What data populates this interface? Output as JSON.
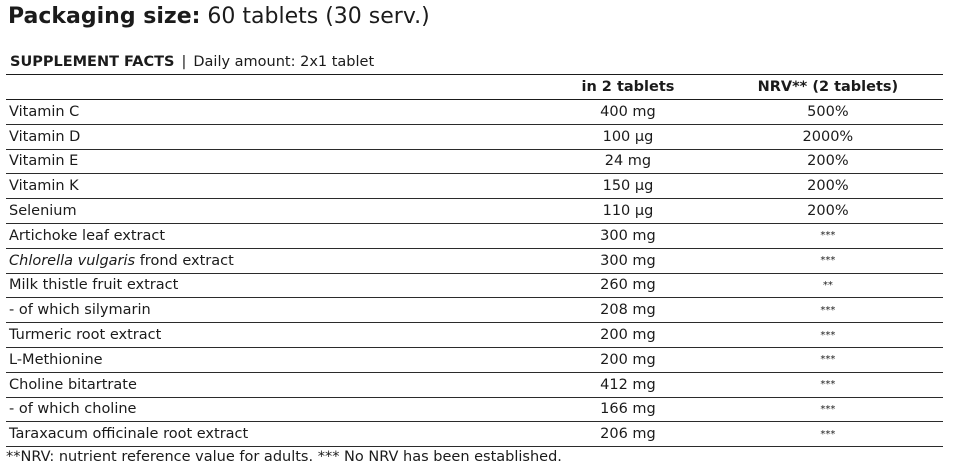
{
  "packaging": {
    "label": "Packaging size:",
    "value": "60 tablets (30 serv.)"
  },
  "facts": {
    "title": "SUPPLEMENT FACTS",
    "separator": "|",
    "daily_amount": "Daily amount: 2x1 tablet",
    "columns": [
      "",
      "in 2 tablets",
      "NRV** (2 tablets)"
    ],
    "rows": [
      {
        "name": "Vitamin C",
        "amount": "400 mg",
        "nrv": "500%"
      },
      {
        "name": "Vitamin D",
        "amount": "100 µg",
        "nrv": "2000%"
      },
      {
        "name": "Vitamin E",
        "amount": "24 mg",
        "nrv": "200%"
      },
      {
        "name": "Vitamin K",
        "amount": "150 µg",
        "nrv": "200%"
      },
      {
        "name": "Selenium",
        "amount": "110 µg",
        "nrv": "200%"
      },
      {
        "name": "Artichoke leaf extract",
        "amount": "300 mg",
        "nrv": "***"
      },
      {
        "name_italic": "Chlorella vulgaris",
        "name": " frond extract",
        "amount": "300 mg",
        "nrv": "***"
      },
      {
        "name": "Milk thistle fruit extract",
        "amount": "260 mg",
        "nrv": "**"
      },
      {
        "name": "- of which silymarin",
        "amount": "208 mg",
        "nrv": "***"
      },
      {
        "name": "Turmeric root extract",
        "amount": "200 mg",
        "nrv": "***"
      },
      {
        "name": "L-Methionine",
        "amount": "200 mg",
        "nrv": "***"
      },
      {
        "name": "Choline bitartrate",
        "amount": "412 mg",
        "nrv": "***"
      },
      {
        "name": "- of which choline",
        "amount": "166 mg",
        "nrv": "***"
      },
      {
        "name": "Taraxacum officinale root extract",
        "amount": "206 mg",
        "nrv": "***"
      }
    ]
  },
  "footnote": "**NRV: nutrient reference value for adults. *** No NRV has been established."
}
